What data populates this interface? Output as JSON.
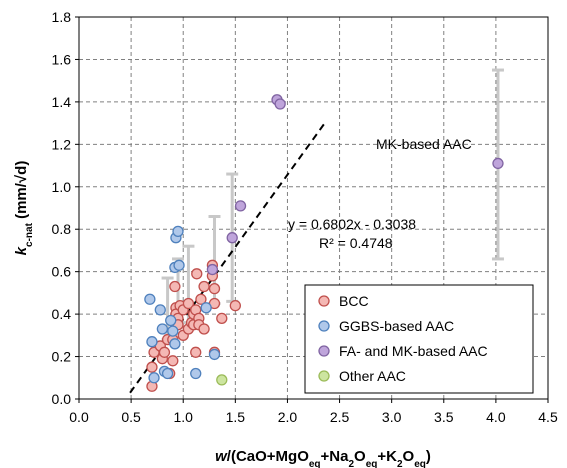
{
  "chart_data": {
    "type": "scatter",
    "xlabel": {
      "parts": [
        {
          "t": "w",
          "style": "italic"
        },
        {
          "t": "/(CaO+MgO"
        },
        {
          "t": "eq",
          "sub": true
        },
        {
          "t": "+Na"
        },
        {
          "t": "2",
          "sub": true
        },
        {
          "t": "O"
        },
        {
          "t": "eq",
          "sub": true
        },
        {
          "t": "+K"
        },
        {
          "t": "2",
          "sub": true
        },
        {
          "t": "O"
        },
        {
          "t": "eq",
          "sub": true
        },
        {
          "t": ")"
        }
      ]
    },
    "ylabel": {
      "parts": [
        {
          "t": "k",
          "style": "italic"
        },
        {
          "t": "c-nat",
          "sub": true
        },
        {
          "t": " (mm/√d)"
        }
      ]
    },
    "xlim": [
      0.0,
      4.5
    ],
    "ylim": [
      0.0,
      1.8
    ],
    "x_ticks": [
      "0.0",
      "0.5",
      "1.0",
      "1.5",
      "2.0",
      "2.5",
      "3.0",
      "3.5",
      "4.0",
      "4.5"
    ],
    "y_ticks": [
      "0.0",
      "0.2",
      "0.4",
      "0.6",
      "0.8",
      "1.0",
      "1.2",
      "1.4",
      "1.6",
      "1.8"
    ],
    "grid": "dashed",
    "legend_position": "bottom-right",
    "series": [
      {
        "name": "BCC",
        "fill": "#f4b8b4",
        "stroke": "#c0504d",
        "points": [
          [
            0.7,
            0.06
          ],
          [
            0.7,
            0.15
          ],
          [
            0.72,
            0.22
          ],
          [
            0.78,
            0.25
          ],
          [
            0.8,
            0.19
          ],
          [
            0.82,
            0.22
          ],
          [
            0.85,
            0.28
          ],
          [
            0.87,
            0.12
          ],
          [
            0.9,
            0.28
          ],
          [
            0.9,
            0.18
          ],
          [
            0.92,
            0.53
          ],
          [
            0.93,
            0.43
          ],
          [
            0.93,
            0.4
          ],
          [
            0.95,
            0.38
          ],
          [
            0.95,
            0.35
          ],
          [
            0.97,
            0.44
          ],
          [
            1.0,
            0.42
          ],
          [
            1.0,
            0.3
          ],
          [
            1.05,
            0.45
          ],
          [
            1.05,
            0.33
          ],
          [
            1.08,
            0.36
          ],
          [
            1.1,
            0.4
          ],
          [
            1.1,
            0.35
          ],
          [
            1.12,
            0.42
          ],
          [
            1.12,
            0.22
          ],
          [
            1.13,
            0.59
          ],
          [
            1.15,
            0.38
          ],
          [
            1.15,
            0.35
          ],
          [
            1.17,
            0.47
          ],
          [
            1.2,
            0.53
          ],
          [
            1.2,
            0.33
          ],
          [
            1.28,
            0.63
          ],
          [
            1.28,
            0.58
          ],
          [
            1.3,
            0.52
          ],
          [
            1.3,
            0.45
          ],
          [
            1.3,
            0.22
          ],
          [
            1.37,
            0.38
          ],
          [
            1.5,
            0.44
          ]
        ]
      },
      {
        "name": "GGBS-based AAC",
        "fill": "#b0c8ea",
        "stroke": "#4f81bd",
        "points": [
          [
            0.68,
            0.47
          ],
          [
            0.7,
            0.27
          ],
          [
            0.72,
            0.1
          ],
          [
            0.78,
            0.42
          ],
          [
            0.8,
            0.33
          ],
          [
            0.82,
            0.13
          ],
          [
            0.85,
            0.12
          ],
          [
            0.88,
            0.37
          ],
          [
            0.9,
            0.32
          ],
          [
            0.92,
            0.26
          ],
          [
            0.92,
            0.62
          ],
          [
            0.93,
            0.76
          ],
          [
            0.95,
            0.79
          ],
          [
            0.96,
            0.63
          ],
          [
            1.12,
            0.12
          ],
          [
            1.22,
            0.43
          ],
          [
            1.3,
            0.21
          ]
        ]
      },
      {
        "name": "FA- and MK-based AAC",
        "fill": "#bfa5db",
        "stroke": "#8064a2",
        "points": [
          [
            1.28,
            0.61
          ],
          [
            1.47,
            0.76
          ],
          [
            1.55,
            0.91
          ],
          [
            1.9,
            1.41
          ],
          [
            1.93,
            1.39
          ],
          [
            4.02,
            1.11
          ]
        ]
      },
      {
        "name": "Other AAC",
        "fill": "#cde5a0",
        "stroke": "#9bbb59",
        "points": [
          [
            1.37,
            0.09
          ]
        ]
      }
    ],
    "error_bars": [
      {
        "x": 0.85,
        "low": 0.28,
        "high": 0.57
      },
      {
        "x": 0.95,
        "low": 0.35,
        "high": 0.66
      },
      {
        "x": 1.05,
        "low": 0.36,
        "high": 0.72
      },
      {
        "x": 1.3,
        "low": 0.45,
        "high": 0.86
      },
      {
        "x": 1.47,
        "low": 0.46,
        "high": 1.06
      },
      {
        "x": 4.02,
        "low": 0.66,
        "high": 1.55
      }
    ],
    "trendline": {
      "x_range": [
        0.49,
        2.36
      ],
      "equation": "y = 0.6802x - 0.3038",
      "r2": "R² = 0.4748"
    },
    "annotations": [
      {
        "text": "MK-based AAC"
      }
    ]
  }
}
